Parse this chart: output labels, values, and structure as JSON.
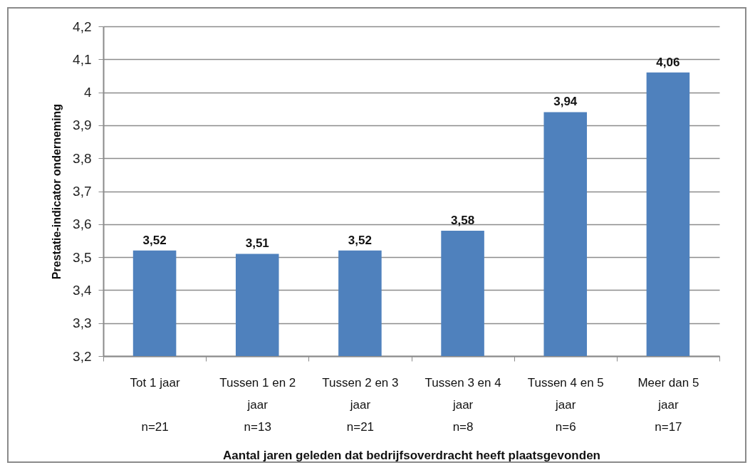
{
  "chart_data": {
    "type": "bar",
    "xlabel": "Aantal jaren geleden dat bedrijfsoverdracht heeft plaatsgevonden",
    "ylabel": "Prestatie-indicator onderneming",
    "categories": [
      "Tot 1 jaar\n\nn=21",
      "Tussen 1 en 2\njaar\nn=13",
      "Tussen 2 en 3\njaar\nn=21",
      "Tussen 3 en 4\njaar\nn=8",
      "Tussen 4 en 5\njaar\nn=6",
      "Meer dan 5\njaar\nn=17"
    ],
    "values": [
      3.52,
      3.51,
      3.52,
      3.58,
      3.94,
      4.06
    ],
    "color": "#4f81bd",
    "value_labels": [
      "3,52",
      "3,51",
      "3,52",
      "3,58",
      "3,94",
      "4,06"
    ],
    "ylim": [
      3.2,
      4.2
    ],
    "yticks": [
      {
        "value": 3.2,
        "label": "3,2"
      },
      {
        "value": 3.3,
        "label": "3,3"
      },
      {
        "value": 3.4,
        "label": "3,4"
      },
      {
        "value": 3.5,
        "label": "3,5"
      },
      {
        "value": 3.6,
        "label": "3,6"
      },
      {
        "value": 3.7,
        "label": "3,7"
      },
      {
        "value": 3.8,
        "label": "3,8"
      },
      {
        "value": 3.9,
        "label": "3,9"
      },
      4,
      {
        "value": 4.1,
        "label": "4,1"
      },
      {
        "value": 4.2,
        "label": "4,2"
      }
    ],
    "grid": "y"
  }
}
